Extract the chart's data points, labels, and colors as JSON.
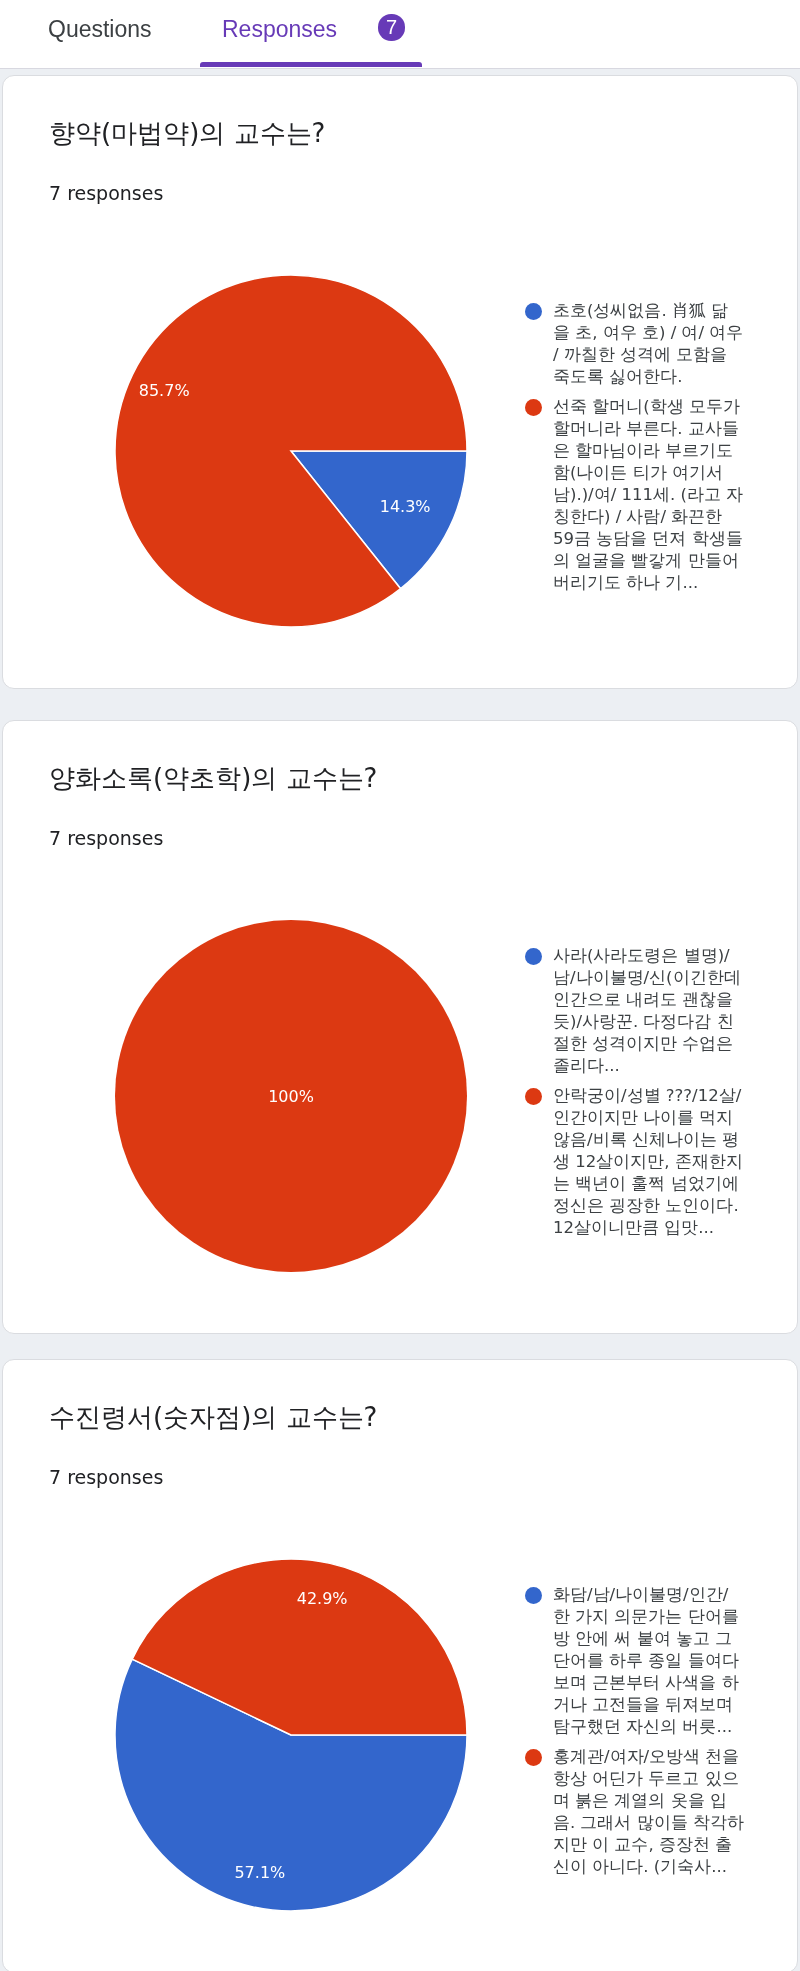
{
  "chart_data": [
    {
      "type": "pie",
      "title": "향약(마법약)의 교수는?",
      "subtitle": "7 responses",
      "annotations": [
        "Questions",
        "Responses",
        "7"
      ],
      "legend": "right",
      "categories": [
        "초호(성씨없음. 肖狐 닮을 초, 여우 호) / 여/ 여우 / 까칠한 성격에 모함을 죽도록 싫어한다.",
        "선죽 할머니(학생 모두가 할머니라 부른다. 교사들은 할마님이라 부르기도 함(나이든 티가 여기서 남).)/여/ 111세. (라고 자칭한다) / 사람/ 화끈한 59금 농담을 던져 학생들의 얼굴을 빨갛게 만들어버리기도 하나 기..."
      ],
      "values": [
        14.3,
        85.7
      ],
      "colors": [
        "#3366cc",
        "#dc3912"
      ],
      "value_labels": [
        "14.3%",
        "85.7%"
      ]
    },
    {
      "type": "pie",
      "title": "양화소록(약초학)의 교수는?",
      "subtitle": "7 responses",
      "legend": "right",
      "categories": [
        "사라(사라도령은 별명)/남/나이불명/신(이긴한데 인간으로 내려도 괜찮을듯)/사랑꾼. 다정다감 친절한 성격이지만 수업은 졸리다...",
        "안락궁이/성별 ???/12살/인간이지만 나이를 먹지 않음/비록 신체나이는 평생 12살이지만, 존재한지는 백년이 훌쩍 넘었기에 정신은 굉장한 노인이다. 12살이니만큼 입맛..."
      ],
      "values": [
        0,
        100
      ],
      "colors": [
        "#3366cc",
        "#dc3912"
      ],
      "value_labels": [
        null,
        "100%"
      ]
    },
    {
      "type": "pie",
      "title": "수진령서(숫자점)의 교수는?",
      "subtitle": "7 responses",
      "legend": "right",
      "categories": [
        "화담/남/나이불명/인간/한 가지 의문가는 단어를 방 안에 써 붙여 놓고 그 단어를 하루 종일 들여다보며 근본부터 사색을 하거나 고전들을 뒤져보며 탐구했던 자신의 버릇...",
        "홍계관/여자/오방색 천을 항상 어딘가 두르고 있으며 붉은 계열의 옷을 입음. 그래서 많이들 착각하지만 이 교수, 증장천 출신이 아니다. (기숙사..."
      ],
      "values": [
        57.1,
        42.9
      ],
      "colors": [
        "#3366cc",
        "#dc3912"
      ],
      "value_labels": [
        "57.1%",
        "42.9%"
      ]
    }
  ]
}
